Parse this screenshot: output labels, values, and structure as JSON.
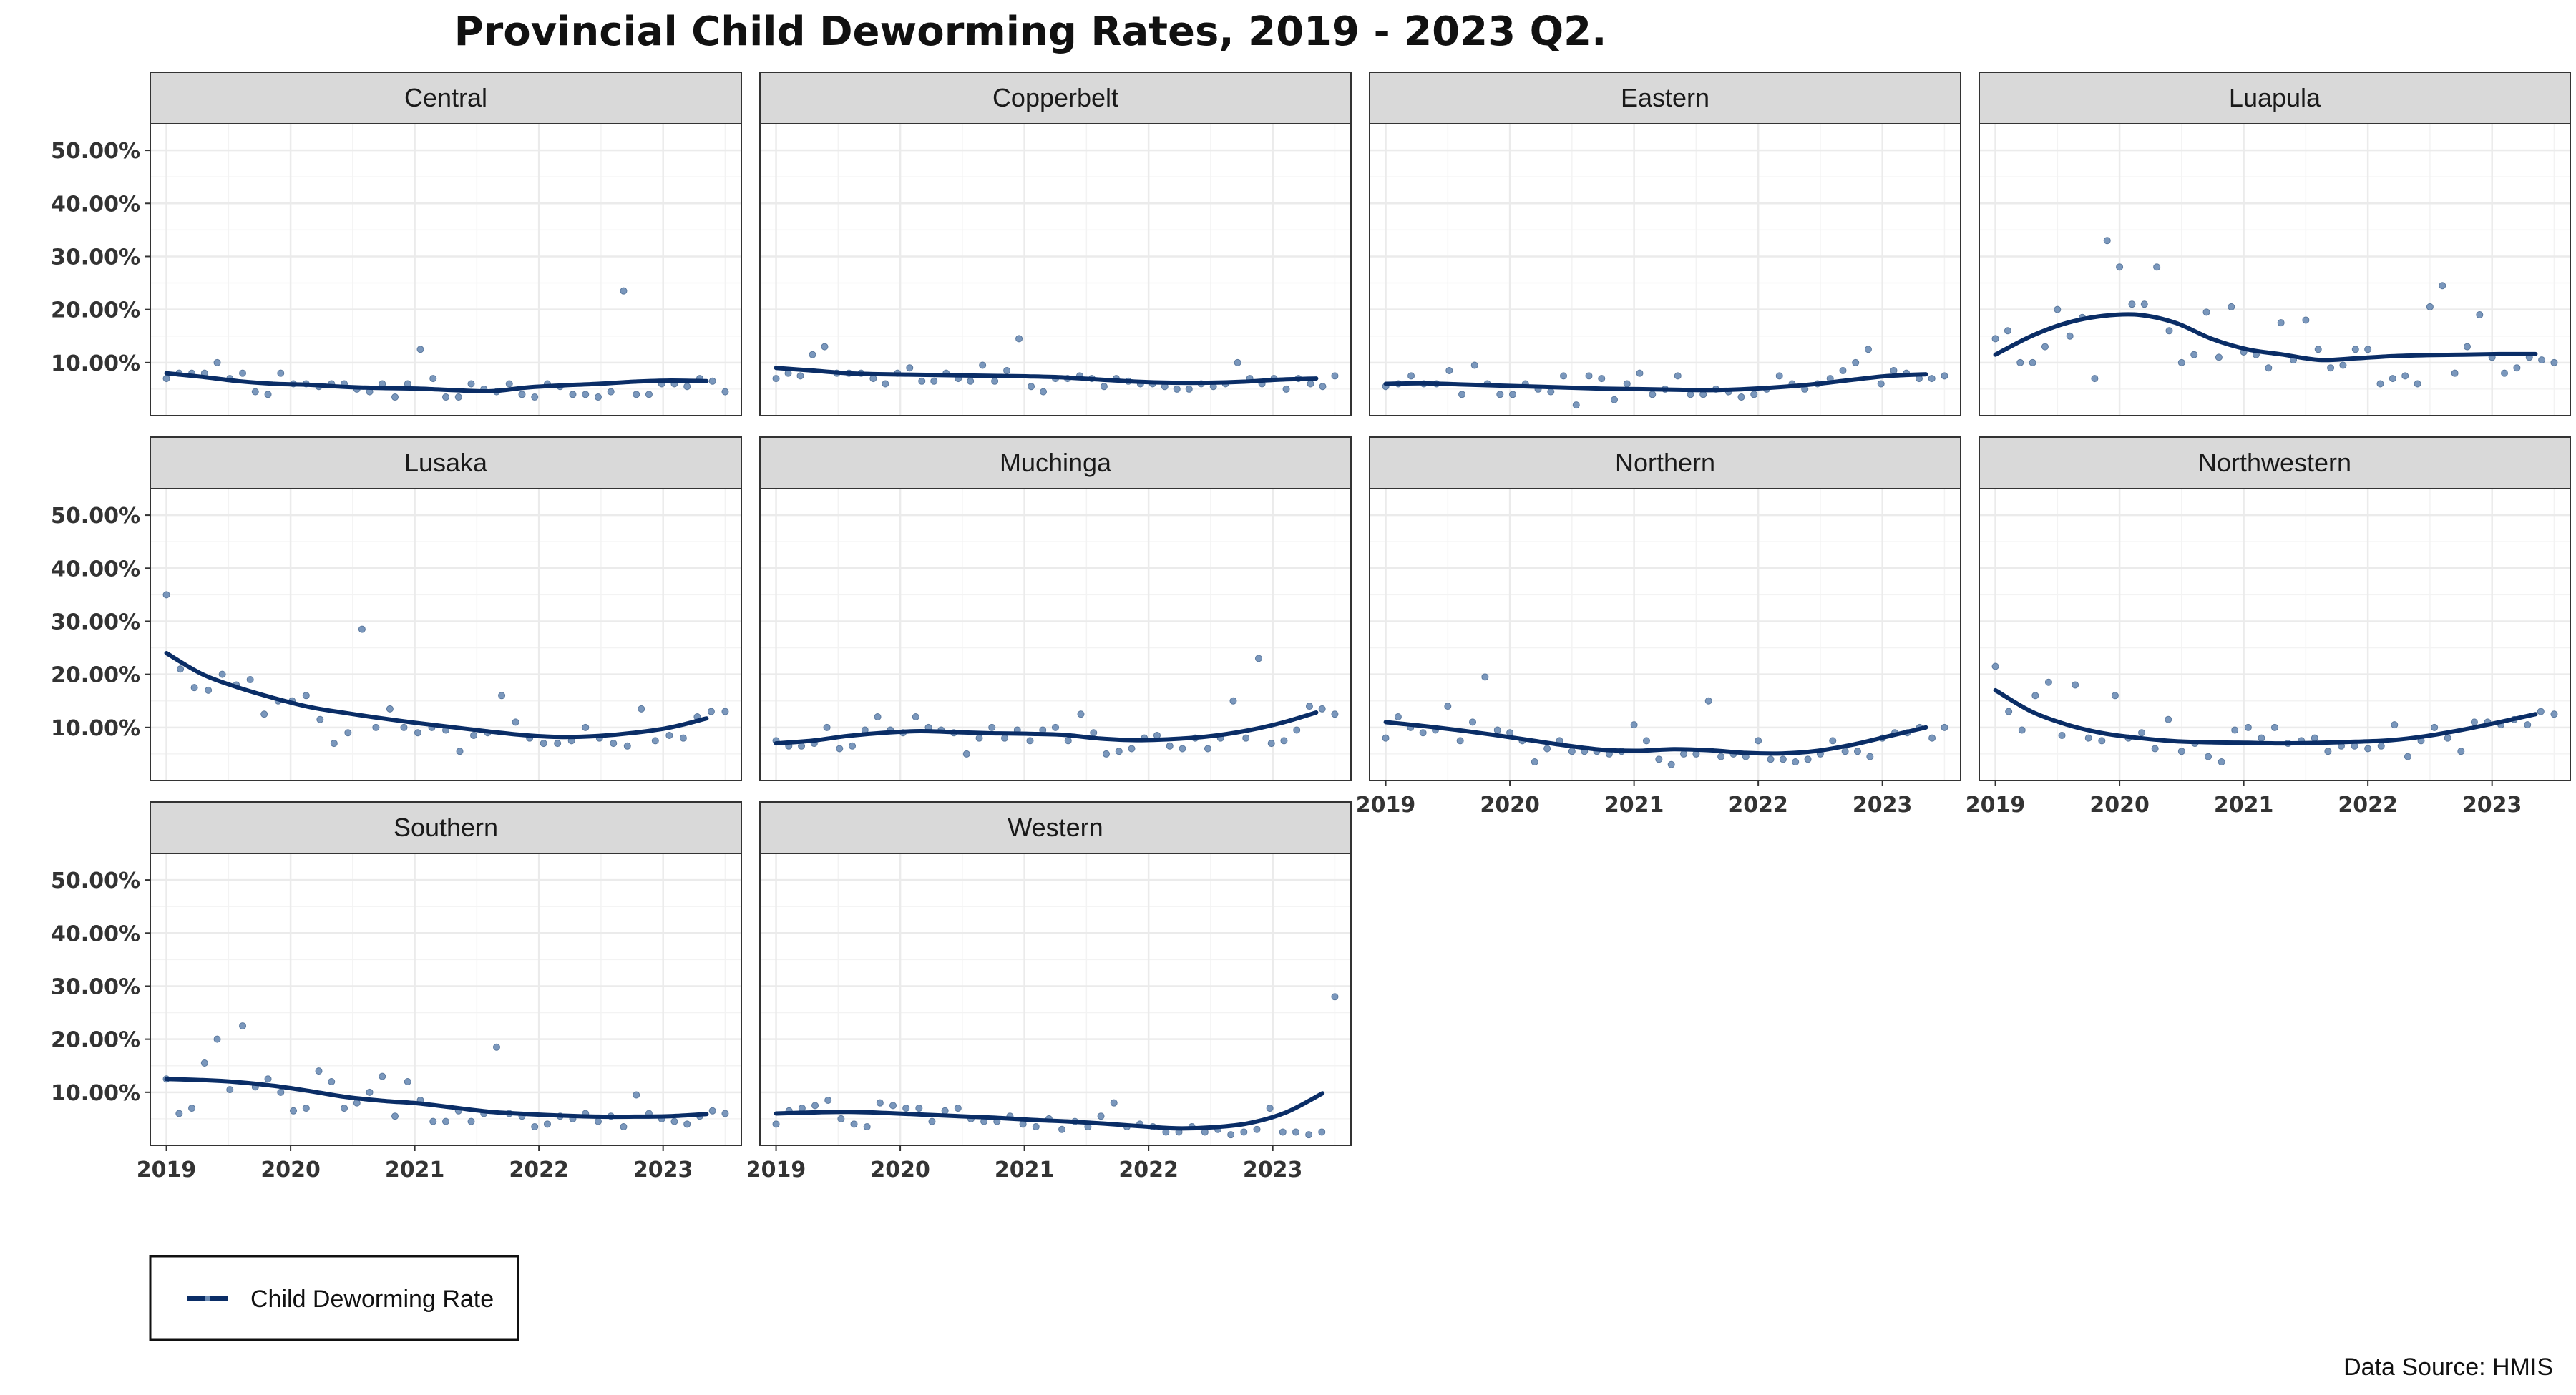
{
  "chart_data": {
    "type": "scatter",
    "title": "Provincial Child Deworming Rates, 2019 - 2023 Q2.",
    "xlabel": "",
    "ylabel": "",
    "xlim": [
      2018.87,
      2023.63
    ],
    "ylim": [
      0,
      55
    ],
    "x_ticks": [
      2019,
      2020,
      2021,
      2022,
      2023
    ],
    "x_tick_labels": [
      "2019",
      "2020",
      "2021",
      "2022",
      "2023"
    ],
    "y_ticks": [
      10,
      20,
      30,
      40,
      50
    ],
    "y_tick_labels": [
      "10.00%",
      "20.00%",
      "30.00%",
      "40.00%",
      "50.00%"
    ],
    "grid": true,
    "series_name": "Child Deworming Rate",
    "legend_label": "Child Deworming Rate",
    "legend_position": "bottom-left",
    "source": "Data Source: HMIS",
    "colors": {
      "line": "#0a2d66",
      "point": "#6c8cb5",
      "strip": "#d9d9d9",
      "grid": "#ebebeb"
    },
    "panels": [
      {
        "name": "Central",
        "points": [
          7,
          8,
          8,
          8,
          10,
          7,
          8,
          4.5,
          4,
          8,
          6,
          6,
          5.5,
          6,
          6,
          5,
          4.5,
          6,
          3.5,
          6,
          12.5,
          7,
          3.5,
          3.5,
          6,
          5,
          4.5,
          6,
          4,
          3.5,
          6,
          5.5,
          4,
          4,
          3.5,
          4.5,
          23.5,
          4,
          4,
          6,
          6,
          5.5,
          7,
          6.5,
          4.5
        ],
        "trend": [
          8,
          7.3,
          6.5,
          6,
          5.8,
          5.4,
          5.2,
          5.1,
          4.8,
          4.6,
          5.3,
          5.7,
          6,
          6.4,
          6.6,
          6.5
        ]
      },
      {
        "name": "Copperbelt",
        "points": [
          7,
          8,
          7.5,
          11.5,
          13,
          8,
          8,
          8,
          7,
          6,
          8,
          9,
          6.5,
          6.5,
          8,
          7,
          6.5,
          9.5,
          6.5,
          8.5,
          14.5,
          5.5,
          4.5,
          7,
          7,
          7.5,
          7,
          5.5,
          7,
          6.5,
          6,
          6,
          5.5,
          5,
          5,
          6,
          5.5,
          6,
          10,
          7,
          6,
          7,
          5,
          7,
          6,
          5.5,
          7.5
        ],
        "trend": [
          9,
          8.5,
          8,
          7.8,
          7.7,
          7.6,
          7.5,
          7.4,
          7.2,
          6.8,
          6.4,
          6.2,
          6.2,
          6.4,
          6.8,
          7
        ]
      },
      {
        "name": "Eastern",
        "points": [
          5.5,
          6,
          7.5,
          6,
          6,
          8.5,
          4,
          9.5,
          6,
          4,
          4,
          6,
          5,
          4.5,
          7.5,
          2,
          7.5,
          7,
          3,
          6,
          8,
          4,
          5,
          7.5,
          4,
          4,
          5,
          4.5,
          3.5,
          4,
          5,
          7.5,
          6,
          5,
          6,
          7,
          8.5,
          10,
          12.5,
          6,
          8.5,
          8,
          7,
          7,
          7.5
        ],
        "trend": [
          6,
          6.1,
          5.9,
          5.7,
          5.5,
          5.3,
          5.1,
          5,
          4.9,
          4.8,
          5,
          5.4,
          6,
          6.8,
          7.5,
          7.8
        ]
      },
      {
        "name": "Luapula",
        "points": [
          14.5,
          16,
          10,
          10,
          13,
          20,
          15,
          18.5,
          7,
          33,
          28,
          21,
          21,
          28,
          16,
          10,
          11.5,
          19.5,
          11,
          20.5,
          12,
          11.5,
          9,
          17.5,
          10.5,
          18,
          12.5,
          9,
          9.5,
          12.5,
          12.5,
          6,
          7,
          7.5,
          6,
          20.5,
          24.5,
          8,
          13,
          19,
          11,
          8,
          9,
          11,
          10.5,
          10
        ],
        "trend": [
          11.5,
          15,
          17.5,
          18.8,
          19,
          17.5,
          14.5,
          12.5,
          11.5,
          10.5,
          10.8,
          11.2,
          11.4,
          11.5,
          11.6,
          11.6
        ]
      },
      {
        "name": "Lusaka",
        "points": [
          35,
          21,
          17.5,
          17,
          20,
          18,
          19,
          12.5,
          15,
          15,
          16,
          11.5,
          7,
          9,
          28.5,
          10,
          13.5,
          10,
          9,
          10,
          9.5,
          5.5,
          8.5,
          9,
          16,
          11,
          8,
          7,
          7,
          7.5,
          10,
          8,
          7,
          6.5,
          13.5,
          7.5,
          8.5,
          8,
          12,
          13,
          13
        ],
        "trend": [
          24,
          20,
          17.5,
          15.5,
          13.8,
          12.7,
          11.7,
          10.8,
          10,
          9.2,
          8.5,
          8.2,
          8.4,
          9,
          10,
          11.7
        ]
      },
      {
        "name": "Muchinga",
        "points": [
          7.5,
          6.5,
          6.5,
          7,
          10,
          6,
          6.5,
          9.5,
          12,
          9.5,
          9,
          12,
          10,
          9.5,
          9,
          5,
          8,
          10,
          8,
          9.5,
          7.5,
          9.5,
          10,
          7.5,
          12.5,
          9,
          5,
          5.5,
          6,
          8,
          8.5,
          6.5,
          6,
          8,
          6,
          8,
          15,
          8,
          23,
          7,
          7.5,
          9.5,
          14,
          13.5,
          12.5
        ],
        "trend": [
          7,
          7.5,
          8.4,
          9,
          9.3,
          9.1,
          8.9,
          8.8,
          8.6,
          7.9,
          7.6,
          7.8,
          8.3,
          9.3,
          10.8,
          12.8
        ]
      },
      {
        "name": "Northern",
        "points": [
          8,
          12,
          10,
          9,
          9.5,
          14,
          7.5,
          11,
          19.5,
          9.5,
          9,
          7.5,
          3.5,
          6,
          7.5,
          5.5,
          5.5,
          5.5,
          5,
          5.5,
          10.5,
          7.5,
          4,
          3,
          5,
          5,
          15,
          4.5,
          5,
          4.5,
          7.5,
          4,
          4,
          3.5,
          4,
          5,
          7.5,
          5.5,
          5.5,
          4.5,
          8,
          9,
          9,
          10,
          8,
          10
        ],
        "trend": [
          11,
          10.3,
          9.5,
          8.6,
          7.6,
          6.6,
          5.8,
          5.6,
          5.9,
          5.7,
          5.2,
          5.1,
          5.6,
          6.8,
          8.4,
          10
        ]
      },
      {
        "name": "Northwestern",
        "points": [
          21.5,
          13,
          9.5,
          16,
          18.5,
          8.5,
          18,
          8,
          7.5,
          16,
          8,
          9,
          6,
          11.5,
          5.5,
          7,
          4.5,
          3.5,
          9.5,
          10,
          8,
          10,
          7,
          7.5,
          8,
          5.5,
          6.5,
          6.5,
          6,
          6.5,
          10.5,
          4.5,
          7.5,
          10,
          8,
          5.5,
          11,
          11,
          10.5,
          11.5,
          10.5,
          13,
          12.5
        ],
        "trend": [
          17,
          13,
          10.5,
          8.9,
          8,
          7.4,
          7.2,
          7.1,
          7,
          7.1,
          7.3,
          7.6,
          8.4,
          9.6,
          11,
          12.5
        ]
      },
      {
        "name": "Southern",
        "points": [
          12.5,
          6,
          7,
          15.5,
          20,
          10.5,
          22.5,
          11,
          12.5,
          10,
          6.5,
          7,
          14,
          12,
          7,
          8,
          10,
          13,
          5.5,
          12,
          8.5,
          4.5,
          4.5,
          6.5,
          4.5,
          6,
          18.5,
          6,
          5.5,
          3.5,
          4,
          5.5,
          5,
          6,
          4.5,
          5.5,
          3.5,
          9.5,
          6,
          5,
          4.5,
          4,
          5.5,
          6.5,
          6
        ],
        "trend": [
          12.5,
          12.3,
          11.9,
          11.2,
          10.2,
          9.1,
          8.4,
          7.9,
          7.1,
          6.3,
          5.9,
          5.6,
          5.4,
          5.4,
          5.5,
          5.9
        ]
      },
      {
        "name": "Western",
        "points": [
          4,
          6.5,
          7,
          7.5,
          8.5,
          5,
          4,
          3.5,
          8,
          7.5,
          7,
          7,
          4.5,
          6.5,
          7,
          5,
          4.5,
          4.5,
          5.5,
          4,
          3.5,
          5,
          3,
          4.5,
          3.5,
          5.5,
          8,
          3.5,
          4,
          3.5,
          2.5,
          2.5,
          3.5,
          2.5,
          3,
          2,
          2.5,
          3,
          7,
          2.5,
          2.5,
          2,
          2.5,
          28
        ],
        "trend": [
          6,
          6.2,
          6.3,
          6.1,
          5.8,
          5.5,
          5.2,
          4.8,
          4.5,
          4.1,
          3.6,
          3.2,
          3.4,
          4.2,
          6.2,
          9.8
        ]
      }
    ]
  }
}
